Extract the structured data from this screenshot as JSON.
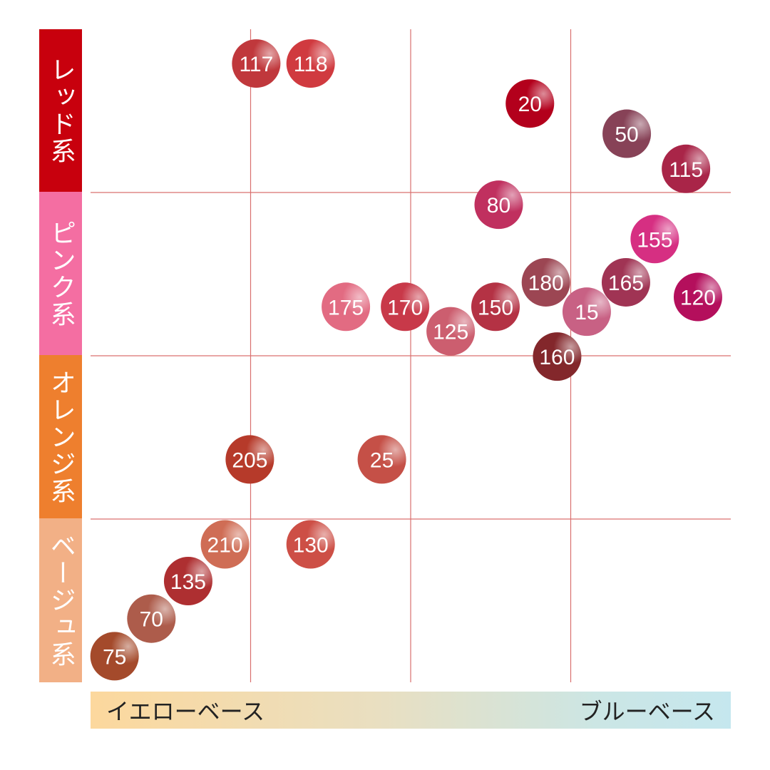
{
  "chart_data": {
    "type": "scatter",
    "categories": [
      {
        "label": "レッド系",
        "color": "#c8000d"
      },
      {
        "label": "ピンク系",
        "color": "#f46ea2"
      },
      {
        "label": "オレンジ系",
        "color": "#ee7f2e"
      },
      {
        "label": "ベージュ系",
        "color": "#f2b086"
      }
    ],
    "x_axis": {
      "left_label": "イエローベース",
      "right_label": "ブルーベース",
      "range": [
        0,
        8
      ]
    },
    "y_axis": {
      "range": [
        0,
        8
      ],
      "divisions": 4
    },
    "grid": true,
    "grid_color": "#d9706f",
    "points": [
      {
        "label": "117",
        "x": 2.07,
        "y": 7.58,
        "color": "#c0383c"
      },
      {
        "label": "118",
        "x": 2.75,
        "y": 7.58,
        "color": "#d03a3f"
      },
      {
        "label": "20",
        "x": 5.49,
        "y": 7.09,
        "color": "#b3001c"
      },
      {
        "label": "50",
        "x": 6.7,
        "y": 6.72,
        "color": "#874257"
      },
      {
        "label": "115",
        "x": 7.44,
        "y": 6.29,
        "color": "#a92548"
      },
      {
        "label": "80",
        "x": 5.1,
        "y": 5.85,
        "color": "#c0305f"
      },
      {
        "label": "155",
        "x": 7.05,
        "y": 5.43,
        "color": "#d62f82"
      },
      {
        "label": "180",
        "x": 5.69,
        "y": 4.9,
        "color": "#9c4653"
      },
      {
        "label": "165",
        "x": 6.69,
        "y": 4.9,
        "color": "#a03454"
      },
      {
        "label": "120",
        "x": 7.59,
        "y": 4.72,
        "color": "#b40f5c"
      },
      {
        "label": "175",
        "x": 3.19,
        "y": 4.6,
        "color": "#e26b82"
      },
      {
        "label": "170",
        "x": 3.93,
        "y": 4.6,
        "color": "#c83949"
      },
      {
        "label": "150",
        "x": 5.06,
        "y": 4.6,
        "color": "#b43244"
      },
      {
        "label": "15",
        "x": 6.2,
        "y": 4.54,
        "color": "#c86184"
      },
      {
        "label": "125",
        "x": 4.5,
        "y": 4.3,
        "color": "#cc5e6f"
      },
      {
        "label": "160",
        "x": 5.83,
        "y": 3.99,
        "color": "#83272b"
      },
      {
        "label": "205",
        "x": 1.99,
        "y": 2.73,
        "color": "#b63a2a"
      },
      {
        "label": "25",
        "x": 3.64,
        "y": 2.73,
        "color": "#c55047"
      },
      {
        "label": "210",
        "x": 1.68,
        "y": 1.69,
        "color": "#cf6d55"
      },
      {
        "label": "130",
        "x": 2.75,
        "y": 1.69,
        "color": "#cd4f46"
      },
      {
        "label": "135",
        "x": 1.22,
        "y": 1.24,
        "color": "#ae2f31"
      },
      {
        "label": "70",
        "x": 0.76,
        "y": 0.78,
        "color": "#ad5c4b"
      },
      {
        "label": "75",
        "x": 0.3,
        "y": 0.32,
        "color": "#a44a2b"
      }
    ]
  }
}
